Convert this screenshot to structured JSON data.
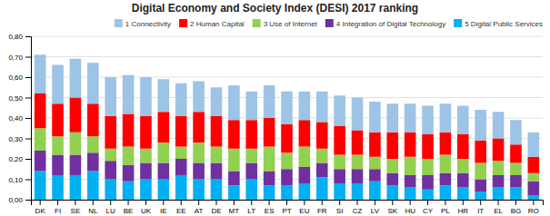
{
  "chart_data": {
    "type": "bar",
    "stacked": true,
    "title": "Digital Economy and Society Index (DESI) 2017 ranking",
    "categories": [
      "DK",
      "FI",
      "SE",
      "NL",
      "LU",
      "BE",
      "UK",
      "IE",
      "EE",
      "AT",
      "DE",
      "MT",
      "LT",
      "ES",
      "PT",
      "EU",
      "FR",
      "SI",
      "CZ",
      "LV",
      "SK",
      "HU",
      "CY",
      "PL",
      "HR",
      "IT",
      "EL",
      "BG",
      "RO"
    ],
    "series": [
      {
        "name": "1 Connectivity",
        "color": "#9DC3E6",
        "values": [
          0.19,
          0.19,
          0.19,
          0.2,
          0.19,
          0.19,
          0.19,
          0.16,
          0.16,
          0.15,
          0.14,
          0.17,
          0.14,
          0.16,
          0.16,
          0.14,
          0.15,
          0.15,
          0.16,
          0.15,
          0.14,
          0.14,
          0.14,
          0.14,
          0.14,
          0.15,
          0.13,
          0.12,
          0.12
        ]
      },
      {
        "name": "2 Human Capital",
        "color": "#FF0000",
        "values": [
          0.17,
          0.16,
          0.17,
          0.16,
          0.16,
          0.16,
          0.16,
          0.15,
          0.15,
          0.15,
          0.15,
          0.14,
          0.14,
          0.14,
          0.14,
          0.13,
          0.13,
          0.14,
          0.12,
          0.12,
          0.13,
          0.12,
          0.12,
          0.11,
          0.12,
          0.11,
          0.11,
          0.09,
          0.08
        ]
      },
      {
        "name": "3 Use of Internet",
        "color": "#92D050",
        "values": [
          0.11,
          0.09,
          0.11,
          0.08,
          0.06,
          0.09,
          0.07,
          0.1,
          0.06,
          0.1,
          0.08,
          0.11,
          0.07,
          0.12,
          0.08,
          0.1,
          0.07,
          0.07,
          0.07,
          0.06,
          0.07,
          0.09,
          0.08,
          0.09,
          0.07,
          0.08,
          0.07,
          0.06,
          0.04
        ]
      },
      {
        "name": "4 Integration of Digital Technology",
        "color": "#7030A0",
        "values": [
          0.1,
          0.1,
          0.1,
          0.09,
          0.09,
          0.08,
          0.08,
          0.08,
          0.08,
          0.08,
          0.08,
          0.07,
          0.08,
          0.07,
          0.08,
          0.08,
          0.07,
          0.07,
          0.07,
          0.06,
          0.06,
          0.06,
          0.07,
          0.06,
          0.07,
          0.06,
          0.06,
          0.06,
          0.07
        ]
      },
      {
        "name": "5 Digital Public Services",
        "color": "#00B0F0",
        "values": [
          0.14,
          0.12,
          0.12,
          0.14,
          0.1,
          0.09,
          0.1,
          0.1,
          0.12,
          0.1,
          0.1,
          0.07,
          0.1,
          0.07,
          0.07,
          0.08,
          0.11,
          0.08,
          0.08,
          0.09,
          0.07,
          0.06,
          0.05,
          0.07,
          0.06,
          0.04,
          0.06,
          0.06,
          0.02
        ]
      }
    ],
    "ylim": [
      0,
      0.8
    ],
    "yticks": [
      {
        "value": 0.0,
        "label": "0,00"
      },
      {
        "value": 0.1,
        "label": "0,10"
      },
      {
        "value": 0.2,
        "label": "0,20"
      },
      {
        "value": 0.3,
        "label": "0,30"
      },
      {
        "value": 0.4,
        "label": "0,40"
      },
      {
        "value": 0.5,
        "label": "0,50"
      },
      {
        "value": 0.6,
        "label": "0,60"
      },
      {
        "value": 0.7,
        "label": "0,70"
      },
      {
        "value": 0.8,
        "label": "0,80"
      }
    ],
    "grid": true,
    "legend": "upper right"
  }
}
